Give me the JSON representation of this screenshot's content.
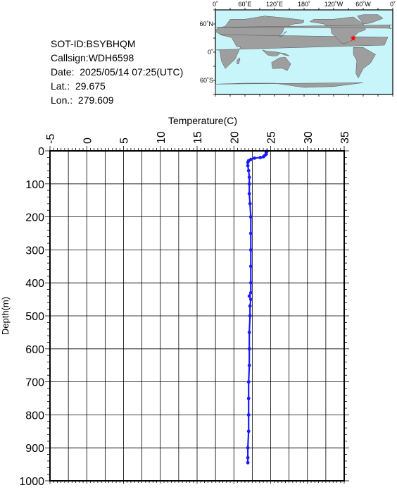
{
  "station": {
    "sot_id": "SOT-ID:BSYBHQM",
    "callsign": "Callsign:WDH6598",
    "date": "Date:  2025/05/14 07:25(UTC)",
    "lat": "Lat.:  29.675",
    "lon": "Lon.:  279.609"
  },
  "map": {
    "lon_labels": [
      "0˚",
      "60˚E",
      "120˚E",
      "180˚",
      "120˚W",
      "60˚W",
      "0˚"
    ],
    "lat_labels": [
      "60˚N",
      "0˚",
      "60˚S"
    ],
    "marker_position": {
      "lat": 29.675,
      "lon": 279.609
    },
    "ocean_color": "#c8f5fa",
    "land_color": "#9e9e9e",
    "marker_color": "#ff0000"
  },
  "chart_data": {
    "type": "line",
    "xlabel": "Temperature(C)",
    "ylabel": "Depth(m)",
    "xlim": [
      -5,
      35
    ],
    "ylim": [
      0,
      1000
    ],
    "y_inverted": true,
    "x_axis_position": "top",
    "x_ticks": [
      -5,
      0,
      5,
      10,
      15,
      20,
      25,
      30,
      35
    ],
    "y_ticks": [
      0,
      100,
      200,
      300,
      400,
      500,
      600,
      700,
      800,
      900,
      1000
    ],
    "grid": true,
    "series": [
      {
        "color": "#1a1aff",
        "points": [
          [
            24.5,
            1
          ],
          [
            24.4,
            5
          ],
          [
            24.4,
            10
          ],
          [
            24.2,
            14
          ],
          [
            24.0,
            18
          ],
          [
            23.6,
            20
          ],
          [
            22.8,
            22
          ],
          [
            22.3,
            26
          ],
          [
            22.0,
            30
          ],
          [
            21.9,
            35
          ],
          [
            21.9,
            45
          ],
          [
            22.0,
            60
          ],
          [
            22.1,
            80
          ],
          [
            22.1,
            100
          ],
          [
            22.1,
            130
          ],
          [
            22.2,
            160
          ],
          [
            22.3,
            200
          ],
          [
            22.3,
            250
          ],
          [
            22.3,
            300
          ],
          [
            22.3,
            350
          ],
          [
            22.3,
            400
          ],
          [
            22.3,
            430
          ],
          [
            22.1,
            440
          ],
          [
            22.3,
            450
          ],
          [
            22.2,
            470
          ],
          [
            22.2,
            500
          ],
          [
            22.1,
            550
          ],
          [
            22.1,
            600
          ],
          [
            22.1,
            650
          ],
          [
            22.0,
            700
          ],
          [
            22.0,
            750
          ],
          [
            22.0,
            800
          ],
          [
            22.0,
            850
          ],
          [
            21.9,
            900
          ],
          [
            21.9,
            930
          ],
          [
            21.9,
            945
          ]
        ]
      }
    ]
  }
}
